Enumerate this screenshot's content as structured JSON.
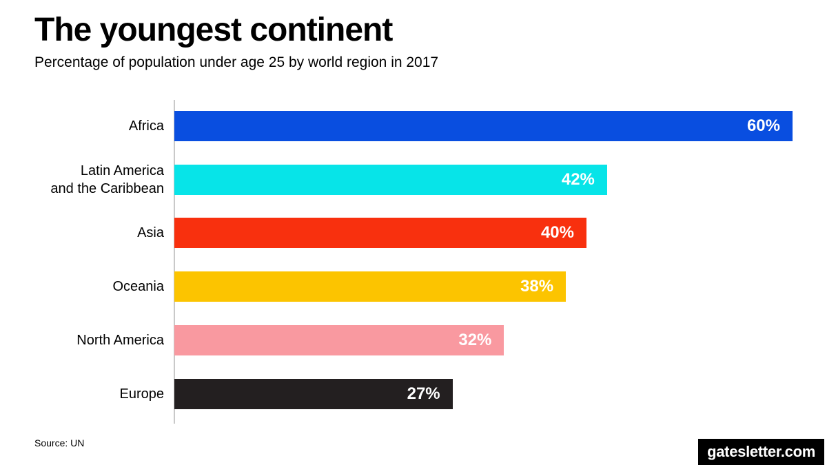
{
  "header": {
    "title": "The youngest continent",
    "subtitle": "Percentage of population under age 25 by world region in 2017"
  },
  "chart_data": {
    "type": "bar",
    "orientation": "horizontal",
    "title": "The youngest continent",
    "subtitle": "Percentage of population under age 25 by world region in 2017",
    "categories": [
      "Africa",
      "Latin America and the Caribbean",
      "Asia",
      "Oceania",
      "North America",
      "Europe"
    ],
    "tick_labels": [
      "Africa",
      "Latin America\nand the Caribbean",
      "Asia",
      "Oceania",
      "North America",
      "Europe"
    ],
    "values": [
      60,
      42,
      40,
      38,
      32,
      27
    ],
    "value_labels": [
      "60%",
      "42%",
      "40%",
      "38%",
      "32%",
      "27%"
    ],
    "bar_colors": [
      "#094ee0",
      "#07e4e8",
      "#f8300e",
      "#fcc400",
      "#f999a0",
      "#231f20"
    ],
    "unit": "%",
    "xlabel": "",
    "ylabel": "",
    "xlim": [
      0,
      60
    ],
    "grid": false,
    "legend": false,
    "value_label_color": "#ffffff",
    "axis_line_color": "#c9c9c9"
  },
  "footer": {
    "source": "Source: UN",
    "brand": "gatesletter.com"
  }
}
